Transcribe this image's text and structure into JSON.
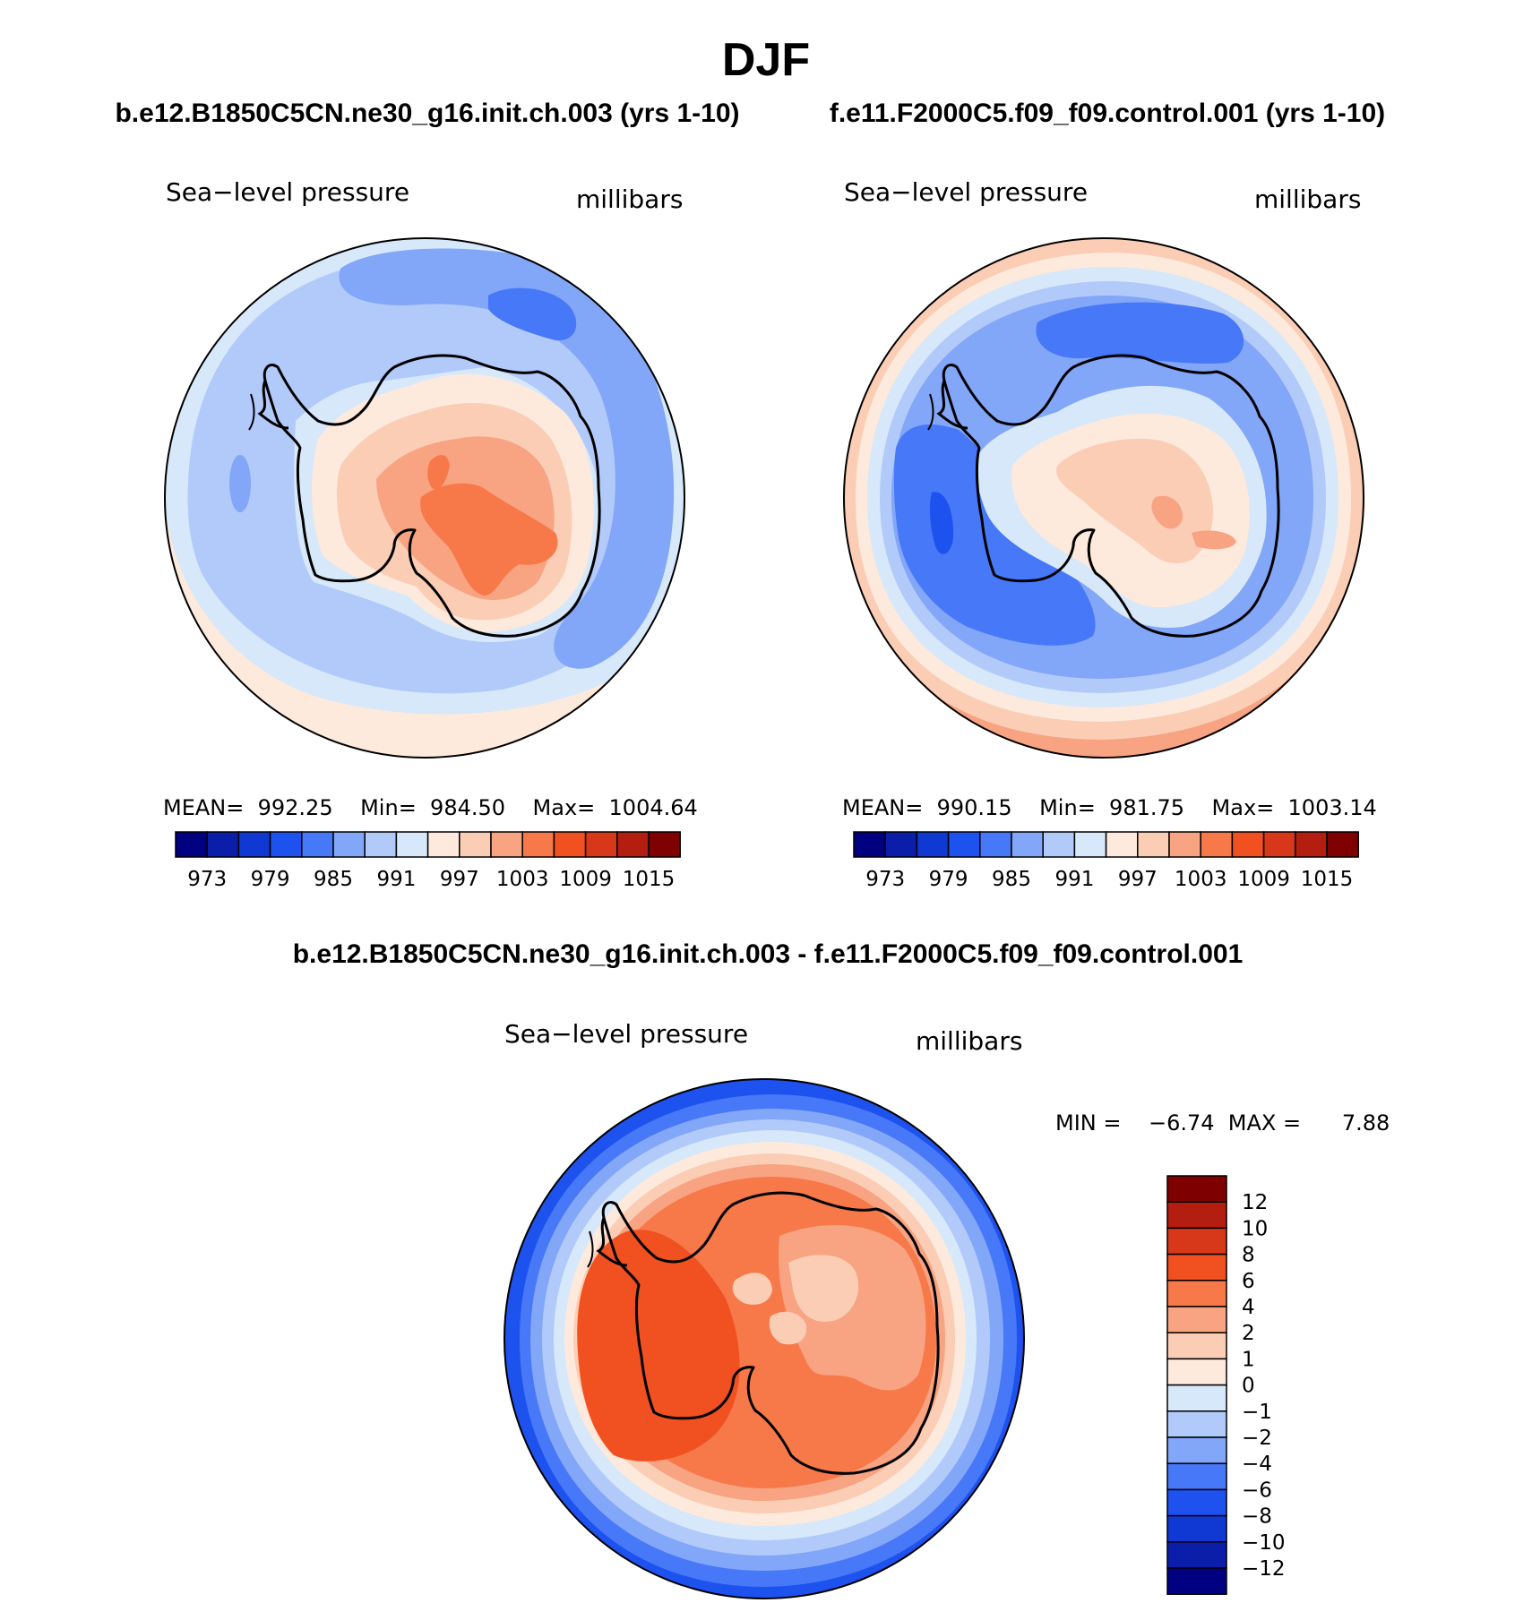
{
  "title": "DJF",
  "colors": {
    "scale16": [
      "#000080",
      "#0a1eaa",
      "#1038d2",
      "#1e52ee",
      "#4678f8",
      "#82a6f8",
      "#b2cafa",
      "#d6e8fa",
      "#fdeadc",
      "#fbcdb5",
      "#f8a382",
      "#f7794a",
      "#f15020",
      "#d8381a",
      "#b31e10",
      "#7f0000"
    ],
    "diff_scale": [
      "#000080",
      "#0a1eaa",
      "#1038d2",
      "#1e52ee",
      "#4678f8",
      "#82a6f8",
      "#b2cafa",
      "#d6e8fa",
      "#fdeadc",
      "#fbcdb5",
      "#f8a382",
      "#f7794a",
      "#f15020",
      "#d8381a",
      "#b31e10",
      "#7f0000"
    ]
  },
  "panels": [
    {
      "id": "left",
      "case_title": "b.e12.B1850C5CN.ne30_g16.init.ch.003 (yrs 1-10)",
      "left_label": "Sea−level pressure",
      "right_label": "millibars",
      "stats": "MEAN=  992.25    Min=  984.50    Max=  1004.64",
      "mean": 992.25,
      "min": 984.5,
      "max": 1004.64,
      "ticks": [
        "973",
        "979",
        "985",
        "991",
        "997",
        "1003",
        "1009",
        "1015"
      ]
    },
    {
      "id": "right",
      "case_title": "f.e11.F2000C5.f09_f09.control.001 (yrs 1-10)",
      "left_label": "Sea−level pressure",
      "right_label": "millibars",
      "stats": "MEAN=  990.15    Min=  981.75    Max=  1003.14",
      "mean": 990.15,
      "min": 981.75,
      "max": 1003.14,
      "ticks": [
        "973",
        "979",
        "985",
        "991",
        "997",
        "1003",
        "1009",
        "1015"
      ]
    }
  ],
  "diff_panel": {
    "case_title": "b.e12.B1850C5CN.ne30_g16.init.ch.003 - f.e11.F2000C5.f09_f09.control.001",
    "left_label": "Sea−level pressure",
    "right_label": "millibars",
    "stats": "MIN =    −6.74  MAX =      7.88",
    "min": -6.74,
    "max": 7.88,
    "labels": [
      "12",
      "10",
      "8",
      "6",
      "4",
      "2",
      "1",
      "0",
      "−1",
      "−2",
      "−4",
      "−6",
      "−8",
      "−10",
      "−12"
    ]
  },
  "chart_data": [
    {
      "type": "heatmap",
      "title": "Sea-level pressure (millibars)",
      "subtitle": "b.e12.B1850C5CN.ne30_g16.init.ch.003 (yrs 1-10)",
      "colorbar_levels": [
        973,
        979,
        985,
        991,
        997,
        1003,
        1009,
        1015
      ],
      "stats": {
        "mean": 992.25,
        "min": 984.5,
        "max": 1004.64
      }
    },
    {
      "type": "heatmap",
      "title": "Sea-level pressure (millibars)",
      "subtitle": "f.e11.F2000C5.f09_f09.control.001 (yrs 1-10)",
      "colorbar_levels": [
        973,
        979,
        985,
        991,
        997,
        1003,
        1009,
        1015
      ],
      "stats": {
        "mean": 990.15,
        "min": 981.75,
        "max": 1003.14
      }
    },
    {
      "type": "heatmap",
      "title": "Sea-level pressure (millibars)",
      "subtitle": "b.e12.B1850C5CN.ne30_g16.init.ch.003 - f.e11.F2000C5.f09_f09.control.001",
      "colorbar_levels": [
        -12,
        -10,
        -8,
        -6,
        -4,
        -2,
        -1,
        0,
        1,
        2,
        4,
        6,
        8,
        10,
        12
      ],
      "stats": {
        "min": -6.74,
        "max": 7.88
      }
    }
  ]
}
